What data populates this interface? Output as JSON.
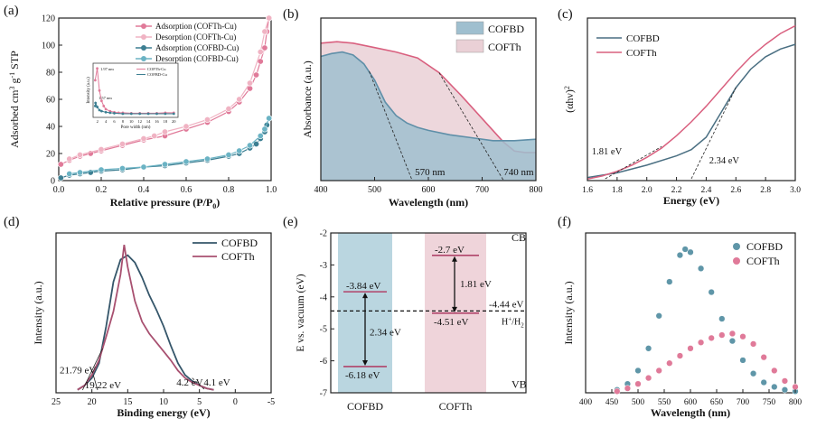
{
  "chart_data": [
    {
      "id": "a",
      "panel_label": "(a)",
      "type": "scatter",
      "xlabel": "Relative pressure (P/P",
      "xlabel_sub": "0",
      "xlabel_end": ")",
      "ylabel": "Adsorbed cm",
      "ylabel_sup1": "3",
      "ylabel_mid": " g",
      "ylabel_sup2": "-1",
      "ylabel_end": " STP",
      "xlim": [
        0,
        1.0
      ],
      "ylim": [
        0,
        120
      ],
      "xticks": [
        "0.0",
        "0.2",
        "0.4",
        "0.6",
        "0.8",
        "1.0"
      ],
      "yticks": [
        "0",
        "20",
        "40",
        "60",
        "80",
        "100",
        "120"
      ],
      "legend_position": "top-right",
      "series": [
        {
          "name": "Adsorption (COFTh-Cu)",
          "color": "#e07a99",
          "x": [
            0.01,
            0.05,
            0.1,
            0.15,
            0.2,
            0.3,
            0.4,
            0.5,
            0.6,
            0.7,
            0.8,
            0.85,
            0.9,
            0.93,
            0.95,
            0.97,
            0.98,
            0.99
          ],
          "y": [
            12,
            15,
            18,
            20,
            22,
            26,
            30,
            33,
            38,
            43,
            51,
            58,
            68,
            78,
            88,
            98,
            110,
            120
          ]
        },
        {
          "name": "Desorption (COFTh-Cu)",
          "color": "#f0b3c3",
          "x": [
            0.99,
            0.97,
            0.95,
            0.9,
            0.85,
            0.8,
            0.7,
            0.6,
            0.5,
            0.45,
            0.4,
            0.3,
            0.2,
            0.1,
            0.05
          ],
          "y": [
            120,
            110,
            95,
            72,
            60,
            53,
            45,
            40,
            36,
            33,
            31,
            27,
            23,
            19,
            16
          ]
        },
        {
          "name": "Adsorption (COFBD-Cu)",
          "color": "#3d7f92",
          "x": [
            0.01,
            0.05,
            0.1,
            0.15,
            0.2,
            0.3,
            0.4,
            0.5,
            0.6,
            0.7,
            0.8,
            0.85,
            0.9,
            0.93,
            0.95,
            0.97,
            0.98,
            0.99
          ],
          "y": [
            2,
            4,
            5,
            6,
            7,
            8,
            10,
            11,
            13,
            15,
            18,
            20,
            24,
            27,
            31,
            36,
            41,
            46
          ]
        },
        {
          "name": "Desorption (COFBD-Cu)",
          "color": "#6bb3c4",
          "x": [
            0.99,
            0.97,
            0.95,
            0.9,
            0.85,
            0.8,
            0.7,
            0.6,
            0.5,
            0.4,
            0.3,
            0.2,
            0.1,
            0.05
          ],
          "y": [
            46,
            38,
            33,
            26,
            22,
            19,
            16,
            14,
            12,
            10,
            9,
            8,
            6,
            5
          ]
        }
      ],
      "inset": {
        "ylabel": "Intensity (a.u.)",
        "xlabel": "Pore width (nm)",
        "xticks": [
          "2",
          "4",
          "6",
          "8",
          "10",
          "12",
          "14",
          "16",
          "18",
          "20"
        ],
        "annotations": [
          "1.97 nm",
          "1.57 nm"
        ],
        "legend": [
          "COFTh-Cu",
          "COFBD-Cu"
        ],
        "series": [
          {
            "name": "COFTh-Cu",
            "color": "#e07a99",
            "x": [
              1.5,
              1.97,
              2.5,
              3,
              3.5,
              4,
              5,
              6,
              7,
              8,
              10,
              12,
              14,
              16,
              18,
              20
            ],
            "y": [
              0.72,
              0.95,
              0.52,
              0.32,
              0.22,
              0.16,
              0.12,
              0.1,
              0.09,
              0.09,
              0.08,
              0.08,
              0.08,
              0.08,
              0.09,
              0.09
            ]
          },
          {
            "name": "COFBD-Cu",
            "color": "#3d7f92",
            "x": [
              1.5,
              1.57,
              2,
              2.5,
              3,
              4,
              5,
              6,
              8,
              10,
              12,
              14,
              16,
              18,
              20
            ],
            "y": [
              0.22,
              0.28,
              0.2,
              0.14,
              0.12,
              0.1,
              0.09,
              0.08,
              0.07,
              0.07,
              0.07,
              0.07,
              0.07,
              0.07,
              0.07
            ]
          }
        ]
      }
    },
    {
      "id": "b",
      "panel_label": "(b)",
      "type": "area",
      "xlabel": "Wavelength (nm)",
      "ylabel": "Absorbance (a.u.)",
      "xlim": [
        400,
        800
      ],
      "xticks": [
        "400",
        "500",
        "600",
        "700",
        "800"
      ],
      "legend_position": "top-right",
      "annotations": [
        "570 nm",
        "740 nm"
      ],
      "series": [
        {
          "name": "COFBD",
          "color": "#5f8fa8",
          "fill": "#9fbfcf",
          "x": [
            400,
            420,
            440,
            460,
            480,
            500,
            520,
            540,
            560,
            580,
            600,
            640,
            680,
            720,
            760,
            800
          ],
          "y": [
            0.84,
            0.86,
            0.87,
            0.85,
            0.79,
            0.68,
            0.53,
            0.44,
            0.39,
            0.36,
            0.34,
            0.31,
            0.29,
            0.27,
            0.27,
            0.28
          ]
        },
        {
          "name": "COFTh",
          "color": "#d9607f",
          "fill": "#ead0d6",
          "x": [
            400,
            430,
            460,
            500,
            540,
            580,
            620,
            660,
            700,
            740,
            760,
            780,
            800
          ],
          "y": [
            0.93,
            0.94,
            0.93,
            0.9,
            0.87,
            0.83,
            0.73,
            0.58,
            0.42,
            0.26,
            0.2,
            0.19,
            0.19
          ]
        }
      ]
    },
    {
      "id": "c",
      "panel_label": "(c)",
      "type": "line",
      "xlabel": "Energy (eV)",
      "ylabel": "(αhν)",
      "ylabel_sup": "2",
      "xlim": [
        1.6,
        3.0
      ],
      "xticks": [
        "1.6",
        "1.8",
        "2.0",
        "2.2",
        "2.4",
        "2.6",
        "2.8",
        "3.0"
      ],
      "legend_position": "top-left",
      "annotations": [
        "1.81 eV",
        "2.34 eV"
      ],
      "series": [
        {
          "name": "COFBD",
          "color": "#4a6f82",
          "x": [
            1.6,
            1.8,
            2.0,
            2.2,
            2.3,
            2.4,
            2.5,
            2.6,
            2.7,
            2.8,
            2.9,
            3.0
          ],
          "y": [
            0.02,
            0.05,
            0.1,
            0.16,
            0.2,
            0.28,
            0.44,
            0.6,
            0.72,
            0.8,
            0.85,
            0.88
          ]
        },
        {
          "name": "COFTh",
          "color": "#d9607f",
          "x": [
            1.6,
            1.7,
            1.8,
            1.9,
            2.0,
            2.1,
            2.2,
            2.3,
            2.4,
            2.5,
            2.6,
            2.7,
            2.8,
            2.9,
            3.0
          ],
          "y": [
            0.01,
            0.03,
            0.06,
            0.1,
            0.15,
            0.21,
            0.29,
            0.38,
            0.48,
            0.59,
            0.7,
            0.8,
            0.88,
            0.95,
            1.0
          ]
        }
      ]
    },
    {
      "id": "d",
      "panel_label": "(d)",
      "type": "line",
      "xlabel": "Binding energy (eV)",
      "ylabel": "Intensity (a.u.)",
      "xlim": [
        25,
        -5
      ],
      "xticks": [
        "25",
        "20",
        "15",
        "10",
        "5",
        "0",
        "-5"
      ],
      "legend_position": "top-right",
      "annotations": [
        "21.79 eV",
        "19.22 eV",
        "4.2 eV",
        "4.1 eV"
      ],
      "series": [
        {
          "name": "COFBD",
          "color": "#35566a",
          "x": [
            22,
            21,
            20,
            19,
            18,
            17,
            16,
            15,
            14,
            13,
            12,
            11,
            10,
            9,
            8,
            7,
            6,
            5,
            4,
            3
          ],
          "y": [
            0.02,
            0.05,
            0.1,
            0.2,
            0.45,
            0.75,
            0.9,
            0.93,
            0.88,
            0.78,
            0.66,
            0.56,
            0.45,
            0.32,
            0.2,
            0.12,
            0.08,
            0.05,
            0.03,
            0.02
          ]
        },
        {
          "name": "COFTh",
          "color": "#a85070",
          "x": [
            22,
            21,
            20,
            19,
            18,
            17,
            16,
            15.5,
            15,
            14,
            13,
            12,
            11,
            10,
            9,
            8,
            7,
            6,
            5,
            4,
            3
          ],
          "y": [
            0.02,
            0.05,
            0.12,
            0.22,
            0.38,
            0.55,
            0.8,
            1.0,
            0.85,
            0.62,
            0.48,
            0.4,
            0.34,
            0.28,
            0.22,
            0.15,
            0.1,
            0.07,
            0.05,
            0.03,
            0.02
          ]
        }
      ]
    },
    {
      "id": "e",
      "panel_label": "(e)",
      "type": "bar",
      "ylabel": "E vs. vacuum (eV)",
      "ylim": [
        -7,
        -2
      ],
      "yticks": [
        "-2",
        "-3",
        "-4",
        "-5",
        "-6",
        "-7"
      ],
      "categories": [
        "COFBD",
        "COFTh"
      ],
      "CB": [
        -3.84,
        -2.7
      ],
      "VB": [
        -6.18,
        -4.51
      ],
      "labels": {
        "cofbd_cb": "-3.84 eV",
        "cofbd_vb": "-6.18 eV",
        "cofbd_gap": "2.34 eV",
        "cofth_cb": "-2.7 eV",
        "cofth_vb": "-4.51 eV",
        "cofth_gap": "1.81 eV",
        "ref": "-4.44 eV",
        "ref_label_main": "H",
        "ref_label_sup": "+",
        "ref_label_mid": "/H",
        "ref_label_sub": "2",
        "cb": "CB",
        "vb": "VB"
      },
      "ref_value": -4.44,
      "colors": {
        "cofbd": "#a9ccd8",
        "cofth": "#edcfd6",
        "level": "#b0446a",
        "label_red": "#c0392b"
      }
    },
    {
      "id": "f",
      "panel_label": "(f)",
      "type": "scatter",
      "xlabel": "Wavelength (nm)",
      "ylabel": "Intensity (a.u.)",
      "xlim": [
        400,
        800
      ],
      "xticks": [
        "400",
        "450",
        "500",
        "550",
        "600",
        "650",
        "700",
        "750",
        "800"
      ],
      "legend_position": "top-right",
      "series": [
        {
          "name": "COFBD",
          "color": "#5f96a8",
          "x": [
            460,
            480,
            500,
            520,
            540,
            560,
            580,
            590,
            600,
            620,
            640,
            660,
            680,
            700,
            720,
            740,
            760,
            780,
            800
          ],
          "y": [
            0.02,
            0.06,
            0.15,
            0.3,
            0.52,
            0.75,
            0.93,
            0.97,
            0.95,
            0.84,
            0.68,
            0.5,
            0.35,
            0.22,
            0.13,
            0.07,
            0.04,
            0.02,
            0.01
          ]
        },
        {
          "name": "COFTh",
          "color": "#e07a99",
          "x": [
            460,
            480,
            500,
            520,
            540,
            560,
            580,
            600,
            620,
            640,
            660,
            680,
            700,
            720,
            740,
            760,
            780,
            800
          ],
          "y": [
            0.01,
            0.03,
            0.06,
            0.1,
            0.15,
            0.2,
            0.25,
            0.3,
            0.34,
            0.37,
            0.39,
            0.4,
            0.38,
            0.33,
            0.24,
            0.15,
            0.08,
            0.04
          ]
        }
      ]
    }
  ]
}
